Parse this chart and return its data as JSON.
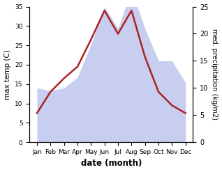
{
  "months": [
    "Jan",
    "Feb",
    "Mar",
    "Apr",
    "May",
    "Jun",
    "Jul",
    "Aug",
    "Sep",
    "Oct",
    "Nov",
    "Dec"
  ],
  "temperature": [
    7.5,
    13.0,
    16.5,
    19.5,
    26.5,
    34.0,
    28.0,
    34.0,
    22.0,
    13.0,
    9.5,
    7.5
  ],
  "precipitation": [
    10.0,
    9.5,
    10.0,
    12.0,
    18.0,
    25.0,
    21.0,
    28.0,
    21.0,
    15.0,
    15.0,
    11.0
  ],
  "temp_ylim": [
    0,
    35
  ],
  "precip_ylim": [
    0,
    25
  ],
  "temp_yticks": [
    0,
    5,
    10,
    15,
    20,
    25,
    30,
    35
  ],
  "precip_yticks": [
    0,
    5,
    10,
    15,
    20,
    25
  ],
  "ylabel_left": "max temp (C)",
  "ylabel_right": "med. precipitation (kg/m2)",
  "xlabel": "date (month)",
  "fill_color": "#c8cef0",
  "line_color": "#aa2222",
  "line_width": 1.8,
  "bg_color": "#ffffff",
  "plot_bg_color": "#e8eaf6"
}
